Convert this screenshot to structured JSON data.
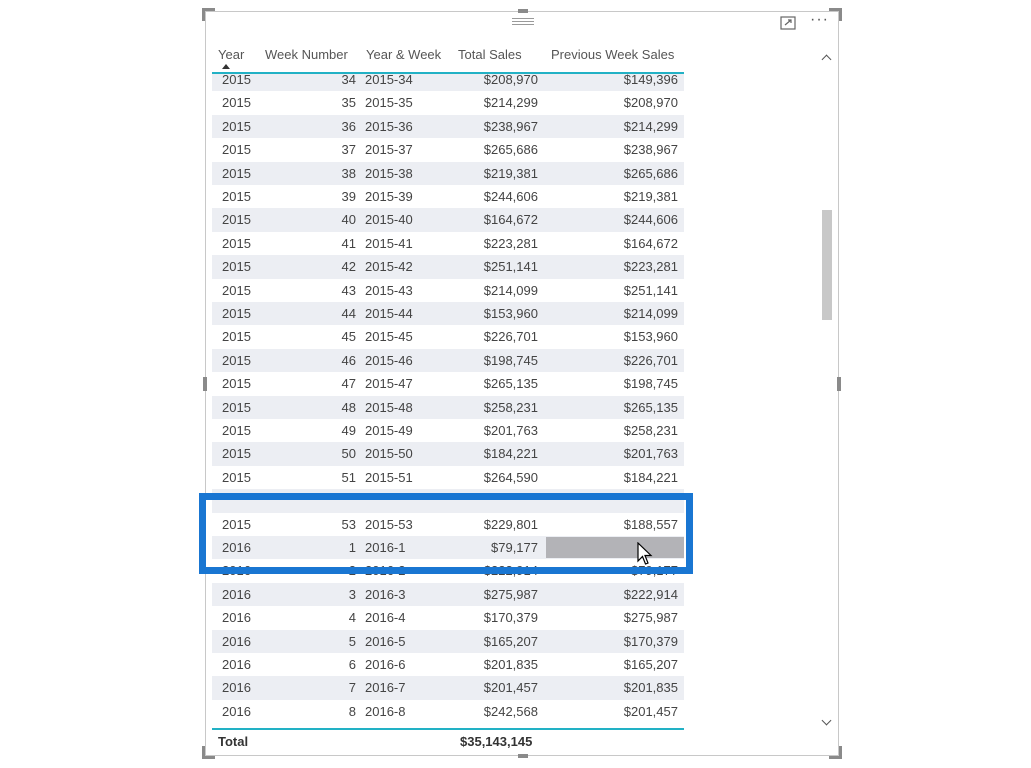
{
  "table": {
    "columns": [
      "Year",
      "Week Number",
      "Year & Week",
      "Total Sales",
      "Previous Week Sales"
    ],
    "rows": [
      [
        "2015",
        "34",
        "2015-34",
        "$208,970",
        "$149,396"
      ],
      [
        "2015",
        "35",
        "2015-35",
        "$214,299",
        "$208,970"
      ],
      [
        "2015",
        "36",
        "2015-36",
        "$238,967",
        "$214,299"
      ],
      [
        "2015",
        "37",
        "2015-37",
        "$265,686",
        "$238,967"
      ],
      [
        "2015",
        "38",
        "2015-38",
        "$219,381",
        "$265,686"
      ],
      [
        "2015",
        "39",
        "2015-39",
        "$244,606",
        "$219,381"
      ],
      [
        "2015",
        "40",
        "2015-40",
        "$164,672",
        "$244,606"
      ],
      [
        "2015",
        "41",
        "2015-41",
        "$223,281",
        "$164,672"
      ],
      [
        "2015",
        "42",
        "2015-42",
        "$251,141",
        "$223,281"
      ],
      [
        "2015",
        "43",
        "2015-43",
        "$214,099",
        "$251,141"
      ],
      [
        "2015",
        "44",
        "2015-44",
        "$153,960",
        "$214,099"
      ],
      [
        "2015",
        "45",
        "2015-45",
        "$226,701",
        "$153,960"
      ],
      [
        "2015",
        "46",
        "2015-46",
        "$198,745",
        "$226,701"
      ],
      [
        "2015",
        "47",
        "2015-47",
        "$265,135",
        "$198,745"
      ],
      [
        "2015",
        "48",
        "2015-48",
        "$258,231",
        "$265,135"
      ],
      [
        "2015",
        "49",
        "2015-49",
        "$201,763",
        "$258,231"
      ],
      [
        "2015",
        "50",
        "2015-50",
        "$184,221",
        "$201,763"
      ],
      [
        "2015",
        "51",
        "2015-51",
        "$264,590",
        "$184,221"
      ],
      [
        "",
        "",
        "",
        "",
        ""
      ],
      [
        "2015",
        "53",
        "2015-53",
        "$229,801",
        "$188,557"
      ],
      [
        "2016",
        "1",
        "2016-1",
        "$79,177",
        ""
      ],
      [
        "2016",
        "2",
        "2016-2",
        "$222,914",
        "$79,177"
      ],
      [
        "2016",
        "3",
        "2016-3",
        "$275,987",
        "$222,914"
      ],
      [
        "2016",
        "4",
        "2016-4",
        "$170,379",
        "$275,987"
      ],
      [
        "2016",
        "5",
        "2016-5",
        "$165,207",
        "$170,379"
      ],
      [
        "2016",
        "6",
        "2016-6",
        "$201,835",
        "$165,207"
      ],
      [
        "2016",
        "7",
        "2016-7",
        "$201,457",
        "$201,835"
      ],
      [
        "2016",
        "8",
        "2016-8",
        "$242,568",
        "$201,457"
      ]
    ],
    "selected_row_index": 20,
    "total": {
      "label": "Total",
      "total_sales": "$35,143,145"
    }
  },
  "colors": {
    "accent_line": "#22b1c5",
    "highlight_box": "#1976d2",
    "selected_cell": "#b3b3b7"
  },
  "icons": [
    "drag-handle-icon",
    "focus-mode-icon",
    "more-options-icon",
    "sort-ascending-icon",
    "scroll-up-icon",
    "scroll-down-icon",
    "mouse-cursor-icon"
  ]
}
